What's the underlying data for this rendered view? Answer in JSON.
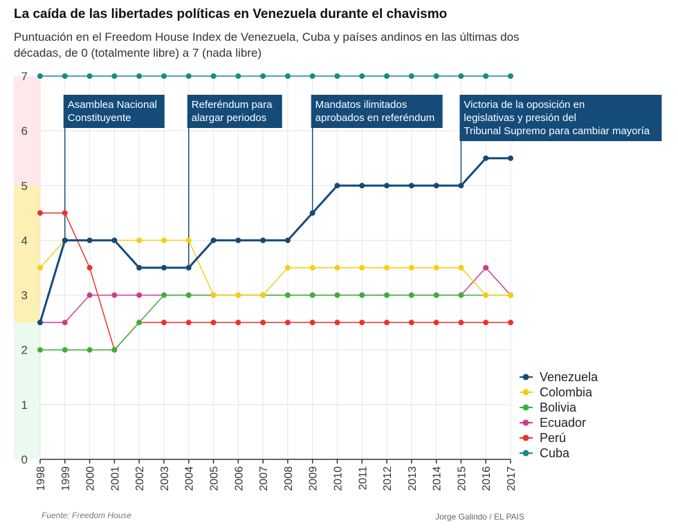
{
  "chart_data": {
    "type": "line",
    "title": "La caída de las libertades políticas en Venezuela durante el chavismo",
    "subtitle": "Puntuación en el Freedom House Index de Venezuela, Cuba y países andinos en las últimas dos décadas, de 0 (totalmente libre) a 7 (nada libre)",
    "x": [
      "1998",
      "1999",
      "2000",
      "2001",
      "2002",
      "2003",
      "2004",
      "2005",
      "2006",
      "2007",
      "2008",
      "2009",
      "2010",
      "2011",
      "2012",
      "2013",
      "2014",
      "2015",
      "2016",
      "2017"
    ],
    "ylim": [
      0,
      7
    ],
    "yticks": [
      "0",
      "1",
      "2",
      "3",
      "4",
      "5",
      "6",
      "7"
    ],
    "bands": [
      {
        "from": 0,
        "to": 2.5,
        "color": "#eafaee"
      },
      {
        "from": 2.5,
        "to": 5,
        "color": "#fcf0b4"
      },
      {
        "from": 5,
        "to": 7,
        "color": "#fde8ea"
      }
    ],
    "series": [
      {
        "name": "Cuba",
        "color": "#1a8a87",
        "values": [
          7,
          7,
          7,
          7,
          7,
          7,
          7,
          7,
          7,
          7,
          7,
          7,
          7,
          7,
          7,
          7,
          7,
          7,
          7,
          7
        ]
      },
      {
        "name": "Perú",
        "color": "#e8342d",
        "values": [
          4.5,
          4.5,
          3.5,
          2,
          2.5,
          2.5,
          2.5,
          2.5,
          2.5,
          2.5,
          2.5,
          2.5,
          2.5,
          2.5,
          2.5,
          2.5,
          2.5,
          2.5,
          2.5,
          2.5
        ]
      },
      {
        "name": "Ecuador",
        "color": "#cc3d8c",
        "values": [
          2.5,
          2.5,
          3,
          3,
          3,
          3,
          3,
          3,
          3,
          3,
          3,
          3,
          3,
          3,
          3,
          3,
          3,
          3,
          3.5,
          3
        ]
      },
      {
        "name": "Bolivia",
        "color": "#3faf3a",
        "values": [
          2,
          2,
          2,
          2,
          2.5,
          3,
          3,
          3,
          3,
          3,
          3,
          3,
          3,
          3,
          3,
          3,
          3,
          3,
          3,
          3
        ]
      },
      {
        "name": "Colombia",
        "color": "#f7cd17",
        "values": [
          3.5,
          4,
          4,
          4,
          4,
          4,
          4,
          3,
          3,
          3,
          3.5,
          3.5,
          3.5,
          3.5,
          3.5,
          3.5,
          3.5,
          3.5,
          3,
          3
        ]
      },
      {
        "name": "Venezuela",
        "color": "#144b78",
        "values": [
          2.5,
          4,
          4,
          4,
          3.5,
          3.5,
          3.5,
          4,
          4,
          4,
          4,
          4.5,
          5,
          5,
          5,
          5,
          5,
          5,
          5.5,
          5.5
        ]
      }
    ],
    "legend_order": [
      "Venezuela",
      "Colombia",
      "Bolivia",
      "Ecuador",
      "Perú",
      "Cuba"
    ],
    "annotations": [
      {
        "year": "1999",
        "value": 4,
        "lines": [
          "Asamblea Nacional",
          "Constituyente"
        ]
      },
      {
        "year": "2004",
        "value": 3.5,
        "lines": [
          "Referéndum para",
          "alargar periodos"
        ]
      },
      {
        "year": "2009",
        "value": 4.5,
        "lines": [
          "Mandatos ilimitados",
          "aprobados en referéndum"
        ]
      },
      {
        "year": "2015",
        "value": 5,
        "lines": [
          "Victoria de la oposición en",
          "legislativas y presión del",
          "Tribunal Supremo para cambiar mayoría"
        ]
      }
    ]
  },
  "source": "Fuente: Freedom House",
  "credit": "Jorge  Galindo / EL PAIS"
}
